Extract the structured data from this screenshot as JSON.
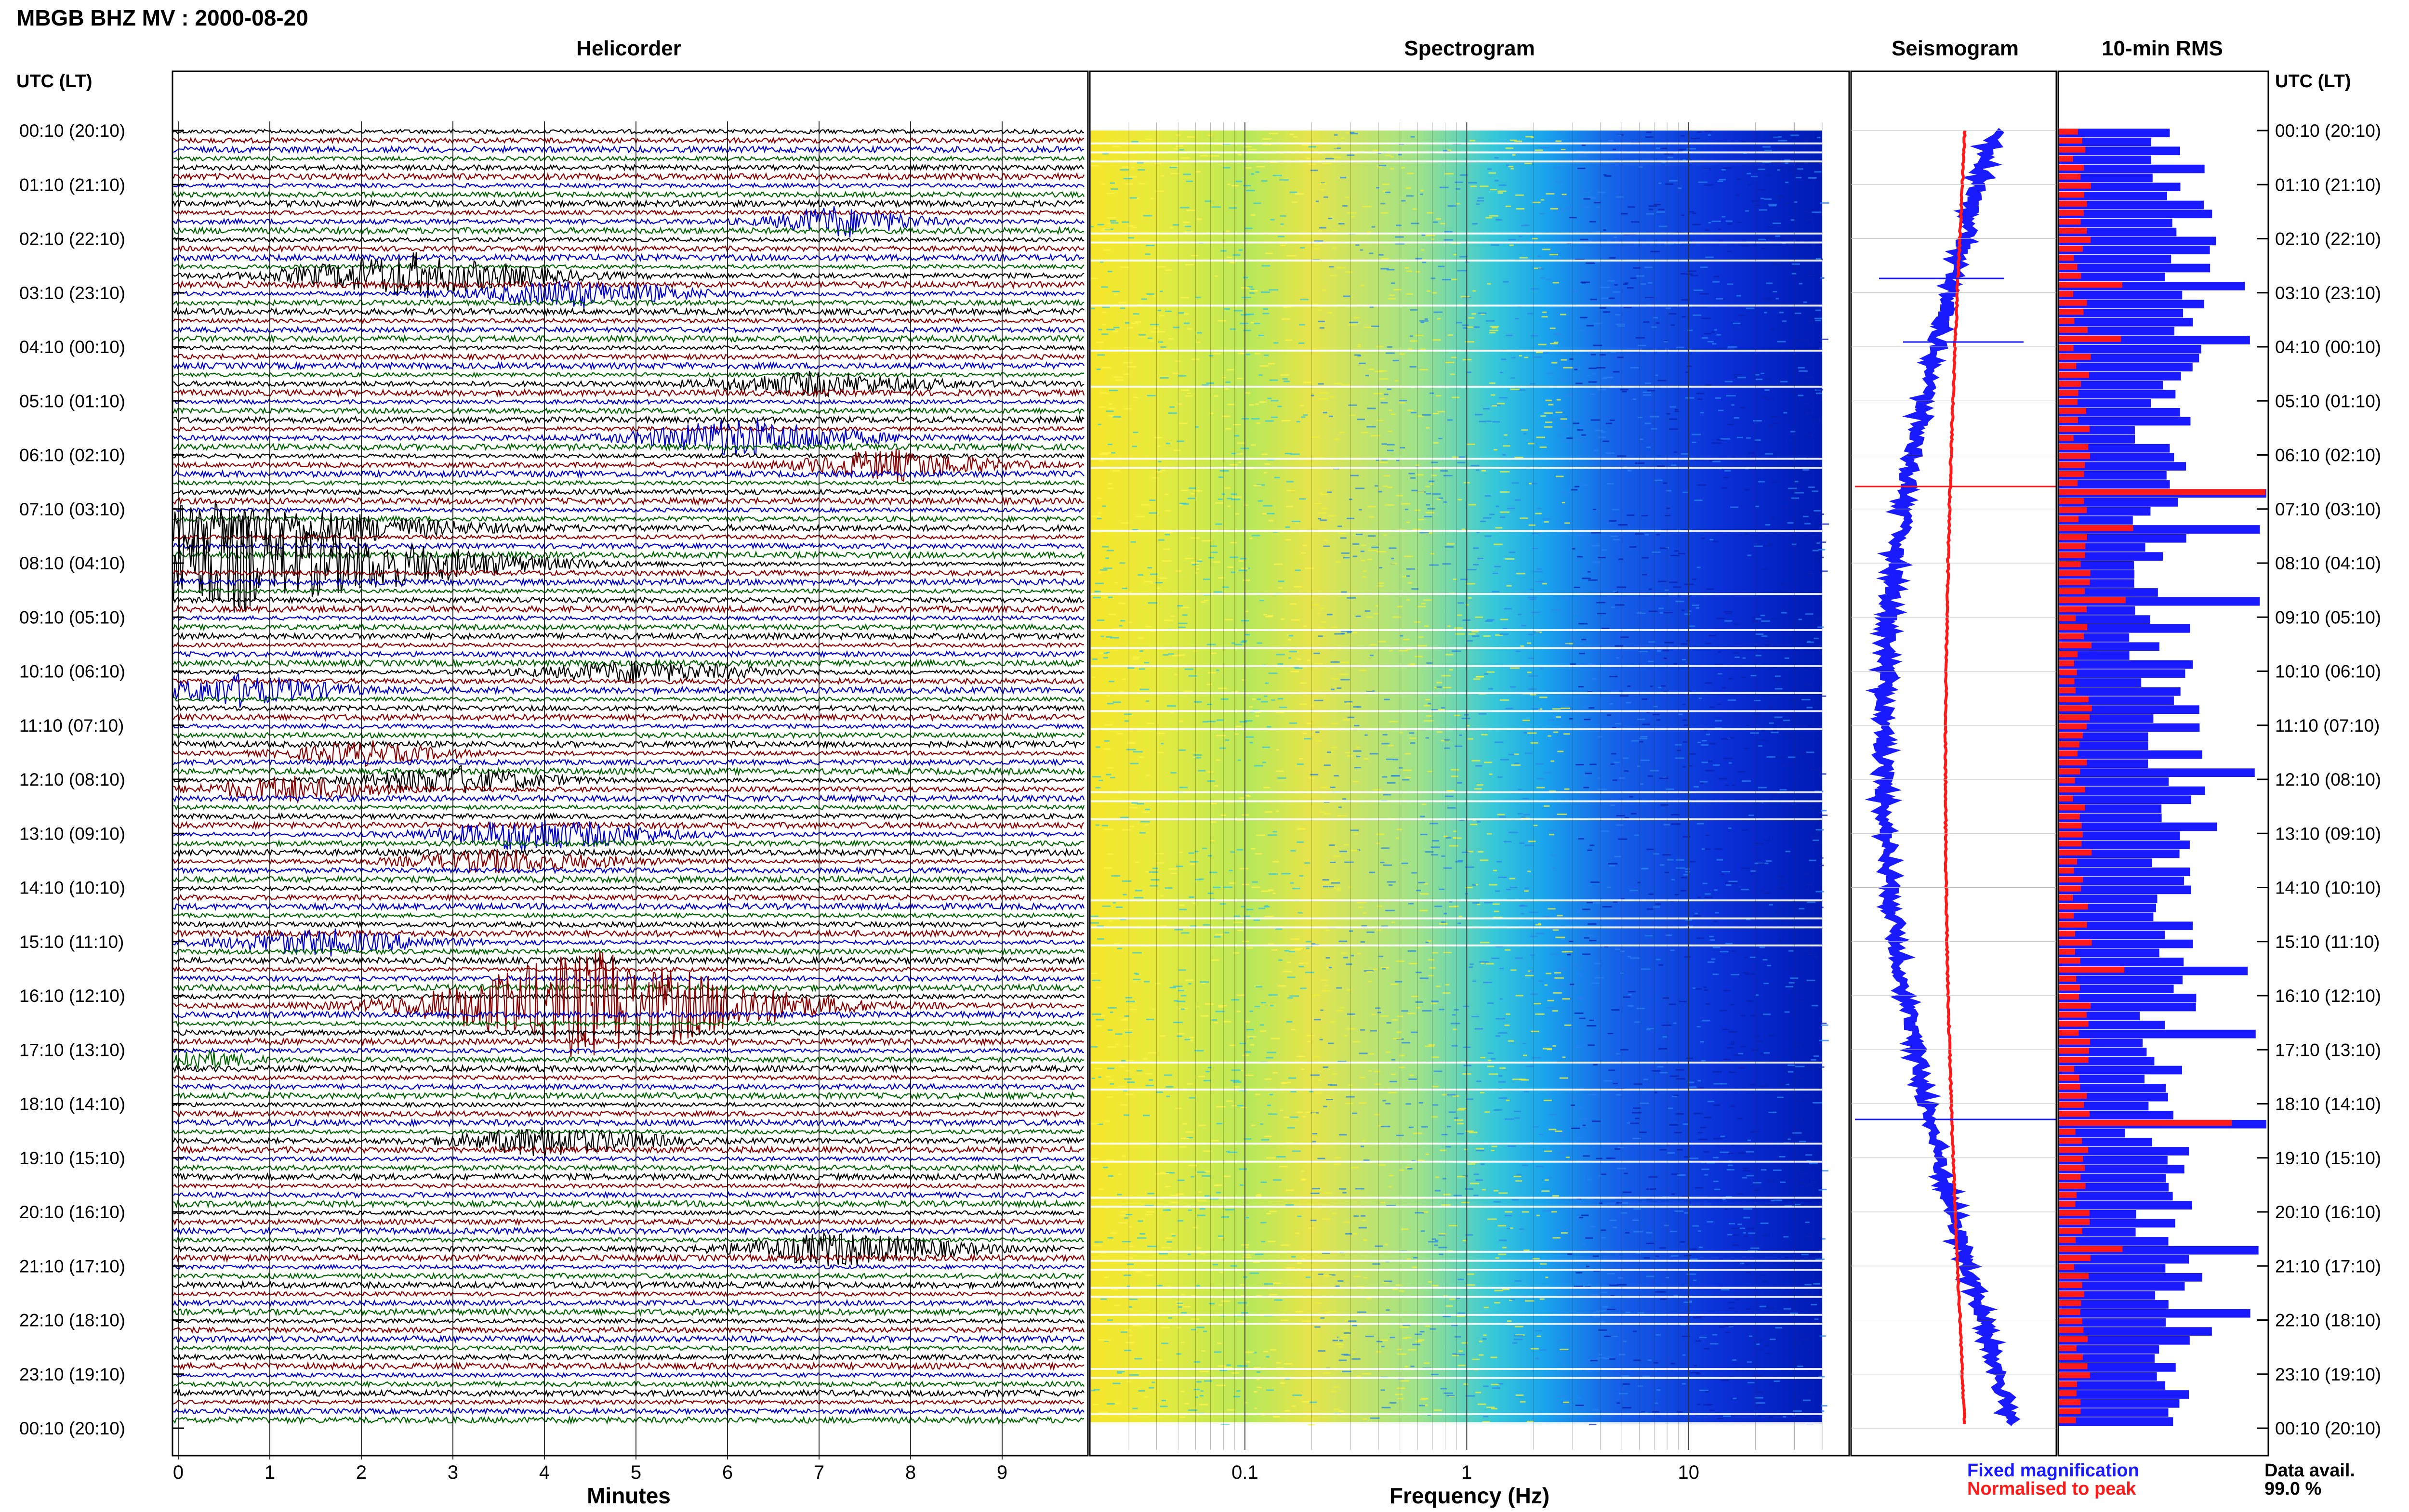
{
  "header": {
    "title": "MBGB BHZ MV : 2000-08-20",
    "utc_label": "UTC (LT)"
  },
  "panels": {
    "helicorder": "Helicorder",
    "spectrogram": "Spectrogram",
    "seismogram": "Seismogram",
    "rms": "10-min RMS"
  },
  "legend": {
    "fixed": "Fixed magnification",
    "normalised": "Normalised to peak",
    "fixed_color": "#1a1aff",
    "normalised_color": "#ff1a1a"
  },
  "availability": {
    "label": "Data avail.",
    "value": "99.0 %"
  },
  "chart_data": [
    {
      "type": "line",
      "title": "Helicorder",
      "xlabel": "Minutes",
      "x_ticks": [
        0,
        1,
        2,
        3,
        4,
        5,
        6,
        7,
        8,
        9
      ],
      "xlim": [
        0,
        10
      ],
      "trace_colors": [
        "#000000",
        "#8b0000",
        "#0000cc",
        "#006400"
      ],
      "time_labels": [
        "00:10 (20:10)",
        "01:10 (21:10)",
        "02:10 (22:10)",
        "03:10 (23:10)",
        "04:10 (00:10)",
        "05:10 (01:10)",
        "06:10 (02:10)",
        "07:10 (03:10)",
        "08:10 (04:10)",
        "09:10 (05:10)",
        "10:10 (06:10)",
        "11:10 (07:10)",
        "12:10 (08:10)",
        "13:10 (09:10)",
        "14:10 (10:10)",
        "15:10 (11:10)",
        "16:10 (12:10)",
        "17:10 (13:10)",
        "18:10 (14:10)",
        "19:10 (15:10)",
        "20:10 (16:10)",
        "21:10 (17:10)",
        "22:10 (18:10)",
        "23:10 (19:10)",
        "00:10 (20:10)"
      ]
    },
    {
      "type": "heatmap",
      "title": "Spectrogram",
      "xlabel": "Frequency (Hz)",
      "x_scale": "log",
      "x_ticks": [
        "0.1",
        "1",
        "10"
      ],
      "x_tick_values": [
        0.1,
        1,
        10
      ],
      "xlim": [
        0.02,
        40
      ]
    },
    {
      "type": "line",
      "title": "Seismogram",
      "series": [
        {
          "name": "Fixed magnification",
          "color": "#1a1aff"
        },
        {
          "name": "Normalised to peak",
          "color": "#ff1a1a"
        }
      ]
    },
    {
      "type": "bar",
      "title": "10-min RMS",
      "series": [
        {
          "name": "Normalised to peak",
          "color": "#ff1a1a"
        },
        {
          "name": "Fixed magnification",
          "color": "#1a1aff"
        }
      ]
    }
  ]
}
